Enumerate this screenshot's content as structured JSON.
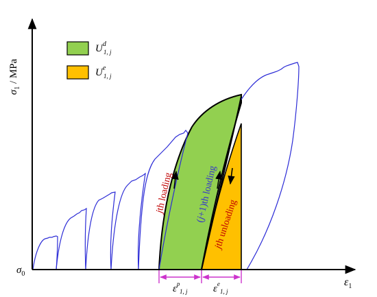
{
  "axes": {
    "y_label_symbol": "σ",
    "y_label_sub": "1",
    "y_label_unit": " / MPa",
    "x_label_symbol": "ε",
    "x_label_sub": "1",
    "origin_symbol": "σ",
    "origin_sub": "0"
  },
  "legend": {
    "items": [
      {
        "symbol": "U",
        "sup": "d",
        "sub": "1, j",
        "color": "#92D050"
      },
      {
        "symbol": "U",
        "sup": "e",
        "sub": "1, j",
        "color": "#FFC000"
      }
    ]
  },
  "annotations": {
    "jth_loading_italic": "j",
    "jth_loading_rest": "th loading",
    "j1_loading_open": "(",
    "j1_loading_italic": "j",
    "j1_loading_rest": "+1)th loading",
    "jth_unloading_italic": "j",
    "jth_unloading_rest": "th unloading"
  },
  "strains": {
    "plastic": {
      "symbol": "ε",
      "sup": "p",
      "sub": "1, j"
    },
    "elastic": {
      "symbol": "ε",
      "sup": "e",
      "sub": "1, j"
    }
  },
  "colors": {
    "curve": "#2B2BD6",
    "dissipated": "#92D050",
    "elastic": "#FFC000",
    "dimension": "#CC33CC",
    "label_red": "#C00000",
    "label_blue": "#3333CC",
    "axis": "#000000"
  }
}
